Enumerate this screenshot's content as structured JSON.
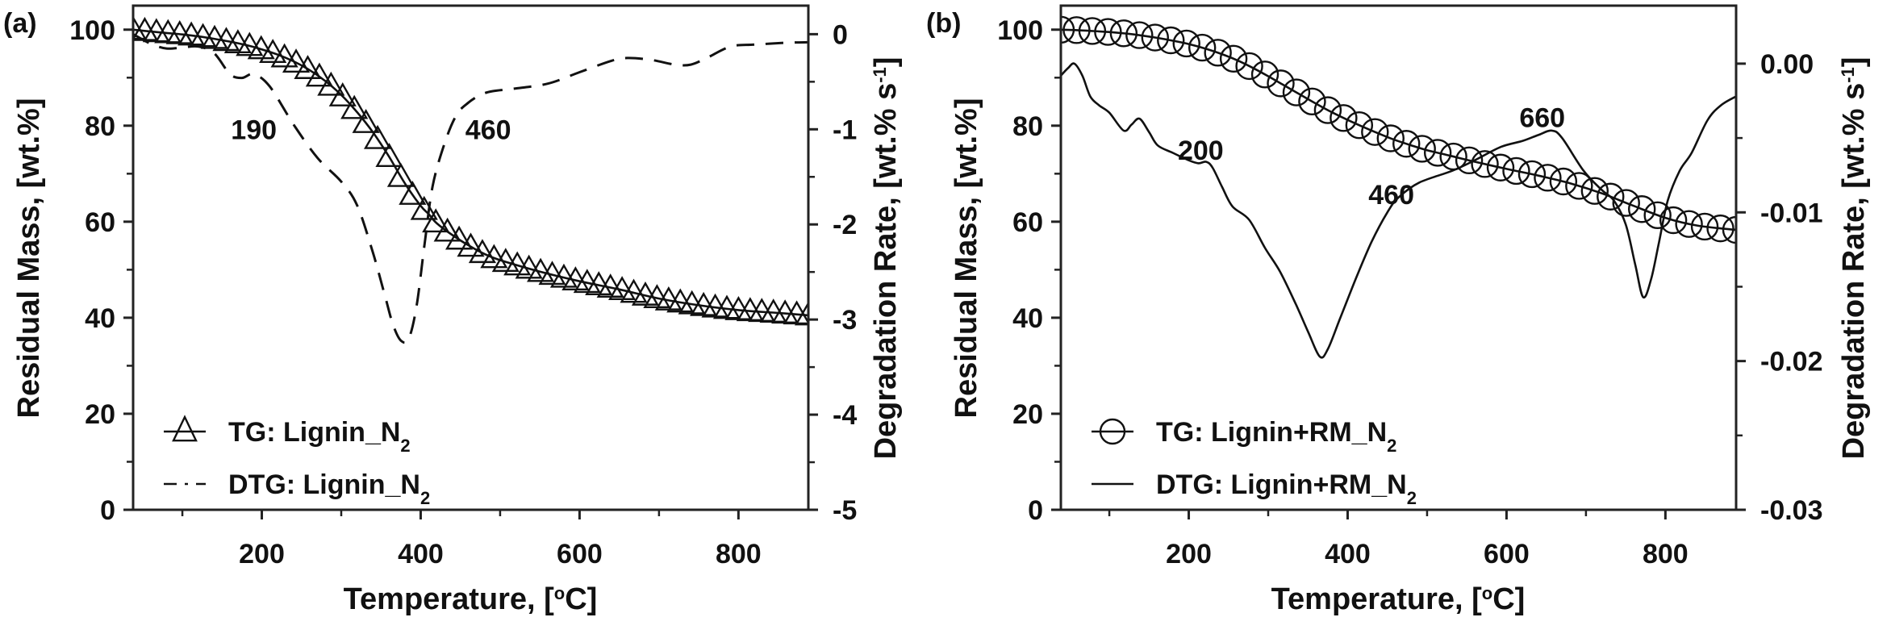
{
  "chart_data": [
    {
      "type": "line",
      "panel": "(a)",
      "xlabel": "Temperature, [°C]",
      "ylabel": "Residual Mass, [wt.%]",
      "y2label": "Degradation Rate, [wt.% s-1]",
      "xlim": [
        38,
        888
      ],
      "ylim": [
        0,
        105
      ],
      "y2lim": [
        -5,
        0.3
      ],
      "xticks": [
        200,
        400,
        600,
        800
      ],
      "xminor": [
        100,
        300,
        500,
        700
      ],
      "yticks": [
        0,
        20,
        40,
        60,
        80,
        100
      ],
      "yminor": [
        10,
        30,
        50,
        70,
        90
      ],
      "y2ticks": [
        0,
        -1,
        -2,
        -3,
        -4,
        -5
      ],
      "y2ticklabels": [
        "0",
        "-1",
        "-2",
        "-3",
        "-4",
        "-5"
      ],
      "y2minor": [
        -0.5,
        -1.5,
        -2.5,
        -3.5,
        -4.5
      ],
      "grid": false,
      "legend_position": "bottom-left",
      "annotations": [
        {
          "text": "190",
          "x": 190,
          "axis": "y2",
          "y": -1.0
        },
        {
          "text": "460",
          "x": 485,
          "axis": "y2",
          "y": -1.0
        }
      ],
      "series": [
        {
          "name": "TG: Lignin_N2",
          "legend_main": "TG: Lignin_N",
          "legend_sub": "2",
          "axis": "y",
          "style": "line-triangle",
          "x": [
            38,
            60,
            80,
            100,
            120,
            140,
            160,
            180,
            200,
            220,
            240,
            260,
            280,
            300,
            320,
            340,
            360,
            380,
            400,
            410,
            420,
            440,
            460,
            480,
            500,
            550,
            600,
            650,
            700,
            750,
            800,
            850,
            888
          ],
          "y": [
            100,
            99.6,
            99.3,
            99.0,
            98.6,
            98.1,
            97.5,
            96.8,
            95.9,
            94.8,
            93.4,
            91.6,
            89.3,
            86.4,
            82.8,
            78.6,
            73.6,
            68.0,
            63.3,
            61.6,
            59.7,
            57.2,
            55.1,
            53.3,
            52.0,
            49.6,
            47.6,
            45.9,
            44.0,
            42.6,
            41.6,
            41.0,
            40.5
          ]
        },
        {
          "name": "DTG: Lignin_N2",
          "legend_main": "DTG: Lignin_N",
          "legend_sub": "2",
          "axis": "y2",
          "style": "dashed",
          "x": [
            38,
            60,
            80,
            100,
            120,
            140,
            160,
            175,
            190,
            210,
            240,
            270,
            300,
            320,
            340,
            355,
            365,
            375,
            385,
            395,
            405,
            415,
            430,
            445,
            460,
            475,
            490,
            520,
            560,
            600,
            640,
            660,
            690,
            720,
            740,
            760,
            790,
            820,
            860,
            888
          ],
          "y": [
            0,
            -0.1,
            -0.15,
            -0.14,
            -0.13,
            -0.2,
            -0.42,
            -0.46,
            -0.42,
            -0.55,
            -0.95,
            -1.3,
            -1.55,
            -1.8,
            -2.3,
            -2.75,
            -3.05,
            -3.22,
            -3.2,
            -2.85,
            -2.2,
            -1.6,
            -1.15,
            -0.85,
            -0.72,
            -0.64,
            -0.6,
            -0.57,
            -0.52,
            -0.4,
            -0.28,
            -0.25,
            -0.27,
            -0.32,
            -0.32,
            -0.25,
            -0.13,
            -0.11,
            -0.09,
            -0.085
          ]
        }
      ]
    },
    {
      "type": "line",
      "panel": "(b)",
      "xlabel": "Temperature, [°C]",
      "ylabel": "Residual Mass, [wt.%]",
      "y2label": "Degradation Rate, [wt.% s-1]",
      "xlim": [
        39,
        889
      ],
      "ylim": [
        0,
        105
      ],
      "y2lim": [
        -0.03,
        0.0039
      ],
      "xticks": [
        200,
        400,
        600,
        800
      ],
      "xminor": [
        100,
        300,
        500,
        700
      ],
      "yticks": [
        0,
        20,
        40,
        60,
        80,
        100
      ],
      "yminor": [
        10,
        30,
        50,
        70,
        90
      ],
      "y2ticks": [
        0.0,
        -0.01,
        -0.02,
        -0.03
      ],
      "y2ticklabels": [
        "0.00",
        "-0.01",
        "-0.02",
        "-0.03"
      ],
      "y2minor": [
        -0.005,
        -0.015,
        -0.025
      ],
      "grid": false,
      "legend_position": "bottom-left",
      "annotations": [
        {
          "text": "200",
          "x": 215,
          "axis": "y2",
          "y": -0.0058
        },
        {
          "text": "460",
          "x": 455,
          "axis": "y2",
          "y": -0.0088
        },
        {
          "text": "660",
          "x": 645,
          "axis": "y2",
          "y": -0.0036
        }
      ],
      "series": [
        {
          "name": "TG: Lignin+RM_N2",
          "legend_main": "TG: Lignin+RM_N",
          "legend_sub": "2",
          "axis": "y",
          "style": "line-circle",
          "x": [
            39,
            60,
            80,
            100,
            120,
            140,
            160,
            180,
            200,
            220,
            240,
            260,
            280,
            300,
            320,
            340,
            360,
            380,
            400,
            420,
            440,
            460,
            480,
            500,
            530,
            560,
            600,
            640,
            680,
            720,
            760,
            800,
            840,
            889
          ],
          "y": [
            100,
            99.9,
            99.7,
            99.5,
            99.2,
            98.8,
            98.3,
            97.7,
            97.0,
            96.1,
            95.0,
            93.7,
            92.1,
            90.3,
            88.4,
            86.5,
            84.6,
            82.8,
            81.2,
            79.7,
            78.3,
            77.0,
            75.9,
            74.9,
            73.7,
            72.5,
            71.0,
            69.6,
            68.0,
            65.9,
            63.3,
            60.8,
            59.2,
            58.3
          ]
        },
        {
          "name": "DTG: Lignin+RM_N2",
          "legend_main": "DTG: Lignin+RM_N",
          "legend_sub": "2",
          "axis": "y2",
          "style": "solid",
          "x": [
            39,
            48,
            56,
            66,
            76,
            87,
            100,
            118,
            128,
            138,
            150,
            161,
            180,
            200,
            212,
            222,
            230,
            242,
            255,
            276,
            296,
            315,
            335,
            350,
            365,
            375,
            390,
            410,
            430,
            450,
            464,
            490,
            532,
            560,
            593,
            620,
            640,
            657,
            670,
            697,
            720,
            735,
            750,
            762,
            772,
            782,
            792,
            803,
            818,
            833,
            853,
            870,
            889
          ],
          "y": [
            -0.0008,
            -0.0003,
            0.0,
            -0.0008,
            -0.0022,
            -0.0028,
            -0.0033,
            -0.0045,
            -0.0041,
            -0.0037,
            -0.0046,
            -0.0055,
            -0.006,
            -0.0065,
            -0.0067,
            -0.0066,
            -0.007,
            -0.0083,
            -0.0096,
            -0.0105,
            -0.0124,
            -0.014,
            -0.0162,
            -0.018,
            -0.0197,
            -0.0192,
            -0.0172,
            -0.0145,
            -0.012,
            -0.01,
            -0.009,
            -0.008,
            -0.0072,
            -0.0065,
            -0.0056,
            -0.0052,
            -0.0048,
            -0.0045,
            -0.005,
            -0.0072,
            -0.0085,
            -0.0092,
            -0.0108,
            -0.0135,
            -0.0157,
            -0.0145,
            -0.012,
            -0.0092,
            -0.0072,
            -0.006,
            -0.0038,
            -0.0028,
            -0.0022
          ]
        }
      ]
    }
  ]
}
